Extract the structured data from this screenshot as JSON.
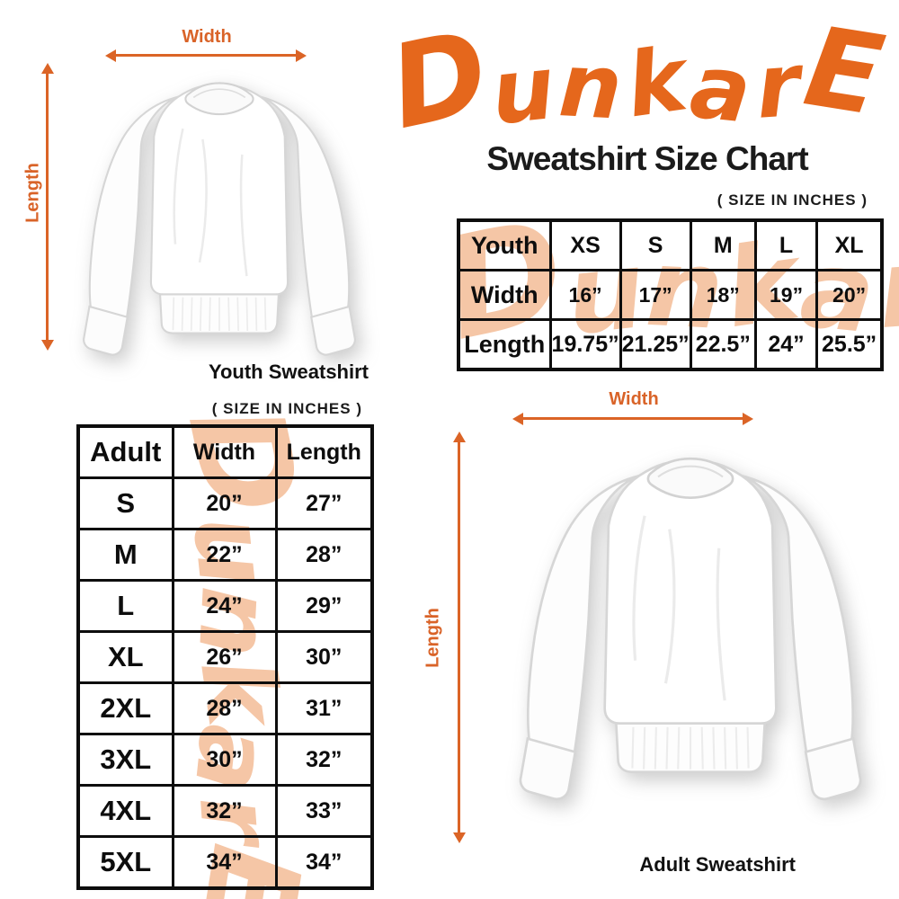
{
  "logo": {
    "text": "DunkarE",
    "color": "#E5671C"
  },
  "header": {
    "title": "Sweatshirt Size Chart",
    "size_note": "( SIZE IN INCHES )"
  },
  "watermark": {
    "text": "DunkarE",
    "color": "#F5C6A6"
  },
  "youth_section": {
    "caption": "Youth Sweatshirt",
    "width_label": "Width",
    "length_label": "Length"
  },
  "adult_section": {
    "caption": "Adult Sweatshirt",
    "width_label": "Width",
    "length_label": "Length",
    "size_note": "( SIZE IN INCHES )"
  },
  "youth_table": {
    "rows": [
      [
        "Youth",
        "XS",
        "S",
        "M",
        "L",
        "XL"
      ],
      [
        "Width",
        "16”",
        "17”",
        "18”",
        "19”",
        "20”"
      ],
      [
        "Length",
        "19.75”",
        "21.25”",
        "22.5”",
        "24”",
        "25.5”"
      ]
    ]
  },
  "adult_table": {
    "rows": [
      [
        "Adult",
        "Width",
        "Length"
      ],
      [
        "S",
        "20”",
        "27”"
      ],
      [
        "M",
        "22”",
        "28”"
      ],
      [
        "L",
        "24”",
        "29”"
      ],
      [
        "XL",
        "26”",
        "30”"
      ],
      [
        "2XL",
        "28”",
        "31”"
      ],
      [
        "3XL",
        "30”",
        "32”"
      ],
      [
        "4XL",
        "32”",
        "33”"
      ],
      [
        "5XL",
        "34”",
        "34”"
      ]
    ]
  },
  "colors": {
    "logo_orange": "#E5671C",
    "arrow_orange": "#DB6426",
    "watermark_peach": "#F5C6A6",
    "table_ink": "#0D0D0D"
  },
  "chart_data": [
    {
      "type": "table",
      "title": "Youth Sweatshirt (size in inches)",
      "columns": [
        "Youth",
        "XS",
        "S",
        "M",
        "L",
        "XL"
      ],
      "rows": [
        [
          "Width",
          16,
          17,
          18,
          19,
          20
        ],
        [
          "Length",
          19.75,
          21.25,
          22.5,
          24,
          25.5
        ]
      ]
    },
    {
      "type": "table",
      "title": "Adult Sweatshirt (size in inches)",
      "columns": [
        "Adult",
        "Width",
        "Length"
      ],
      "rows": [
        [
          "S",
          20,
          27
        ],
        [
          "M",
          22,
          28
        ],
        [
          "L",
          24,
          29
        ],
        [
          "XL",
          26,
          30
        ],
        [
          "2XL",
          28,
          31
        ],
        [
          "3XL",
          30,
          32
        ],
        [
          "4XL",
          32,
          33
        ],
        [
          "5XL",
          34,
          34
        ]
      ]
    }
  ]
}
